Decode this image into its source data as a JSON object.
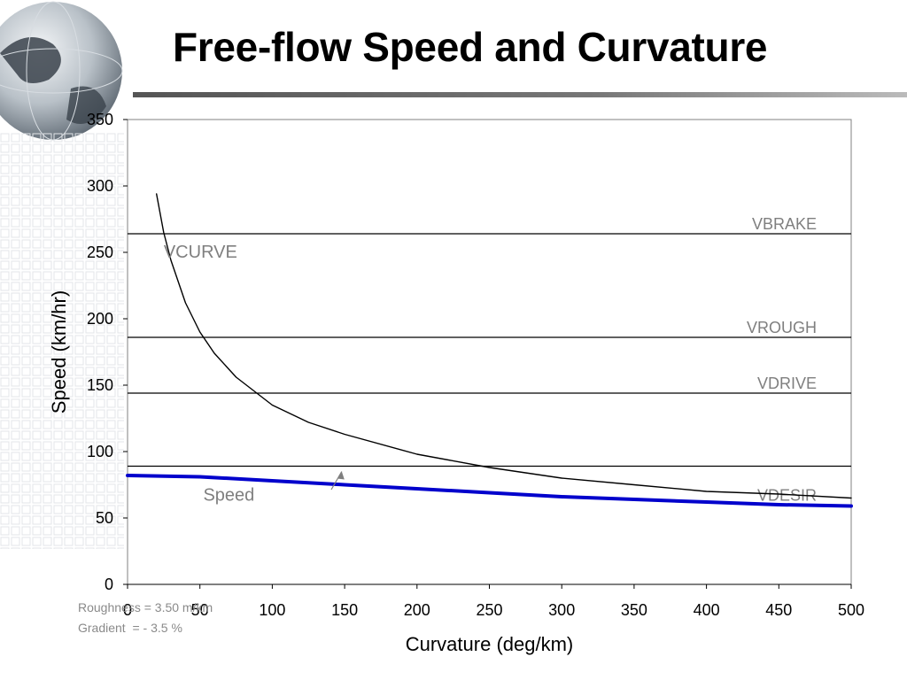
{
  "slide": {
    "title": "Free-flow Speed and Curvature",
    "notes": [
      "Roughness = 3.50 m/km",
      "Gradient  = - 3.5 %"
    ]
  },
  "chart_data": {
    "type": "line",
    "xlabel": "Curvature (deg/km)",
    "ylabel": "Speed (km/hr)",
    "xlim": [
      0,
      500
    ],
    "ylim": [
      0,
      350
    ],
    "xticks": [
      0,
      50,
      100,
      150,
      200,
      250,
      300,
      350,
      400,
      450,
      500
    ],
    "yticks": [
      0,
      50,
      100,
      150,
      200,
      250,
      300,
      350
    ],
    "grid": false,
    "legend": "none",
    "horizontal_lines": [
      {
        "name": "VBRAKE",
        "y": 264
      },
      {
        "name": "VROUGH",
        "y": 186
      },
      {
        "name": "VDRIVE",
        "y": 144
      },
      {
        "name": "VDESIR",
        "y": 89
      }
    ],
    "series": [
      {
        "name": "VCURVE",
        "color": "#000000",
        "x": [
          20,
          25,
          30,
          40,
          50,
          60,
          75,
          100,
          125,
          150,
          200,
          250,
          300,
          350,
          400,
          450,
          500
        ],
        "y": [
          294,
          265,
          244,
          212,
          190,
          174,
          156,
          135,
          122,
          113,
          98,
          88,
          80,
          75,
          70,
          68,
          65
        ]
      },
      {
        "name": "Speed",
        "color": "#0000cc",
        "x": [
          0,
          50,
          100,
          150,
          200,
          250,
          300,
          350,
          400,
          450,
          500
        ],
        "y": [
          82,
          81,
          78,
          75,
          72,
          69,
          66,
          64,
          62,
          60,
          59
        ]
      }
    ],
    "annotations": [
      {
        "text": "VCURVE",
        "x": 25,
        "y": 246
      },
      {
        "text": "Speed",
        "x": 70,
        "y": 63,
        "arrow_to": [
          148,
          85
        ]
      }
    ],
    "colors": {
      "label": "#7f7f7f",
      "speed": "#0000cc",
      "curve": "#000000"
    }
  }
}
